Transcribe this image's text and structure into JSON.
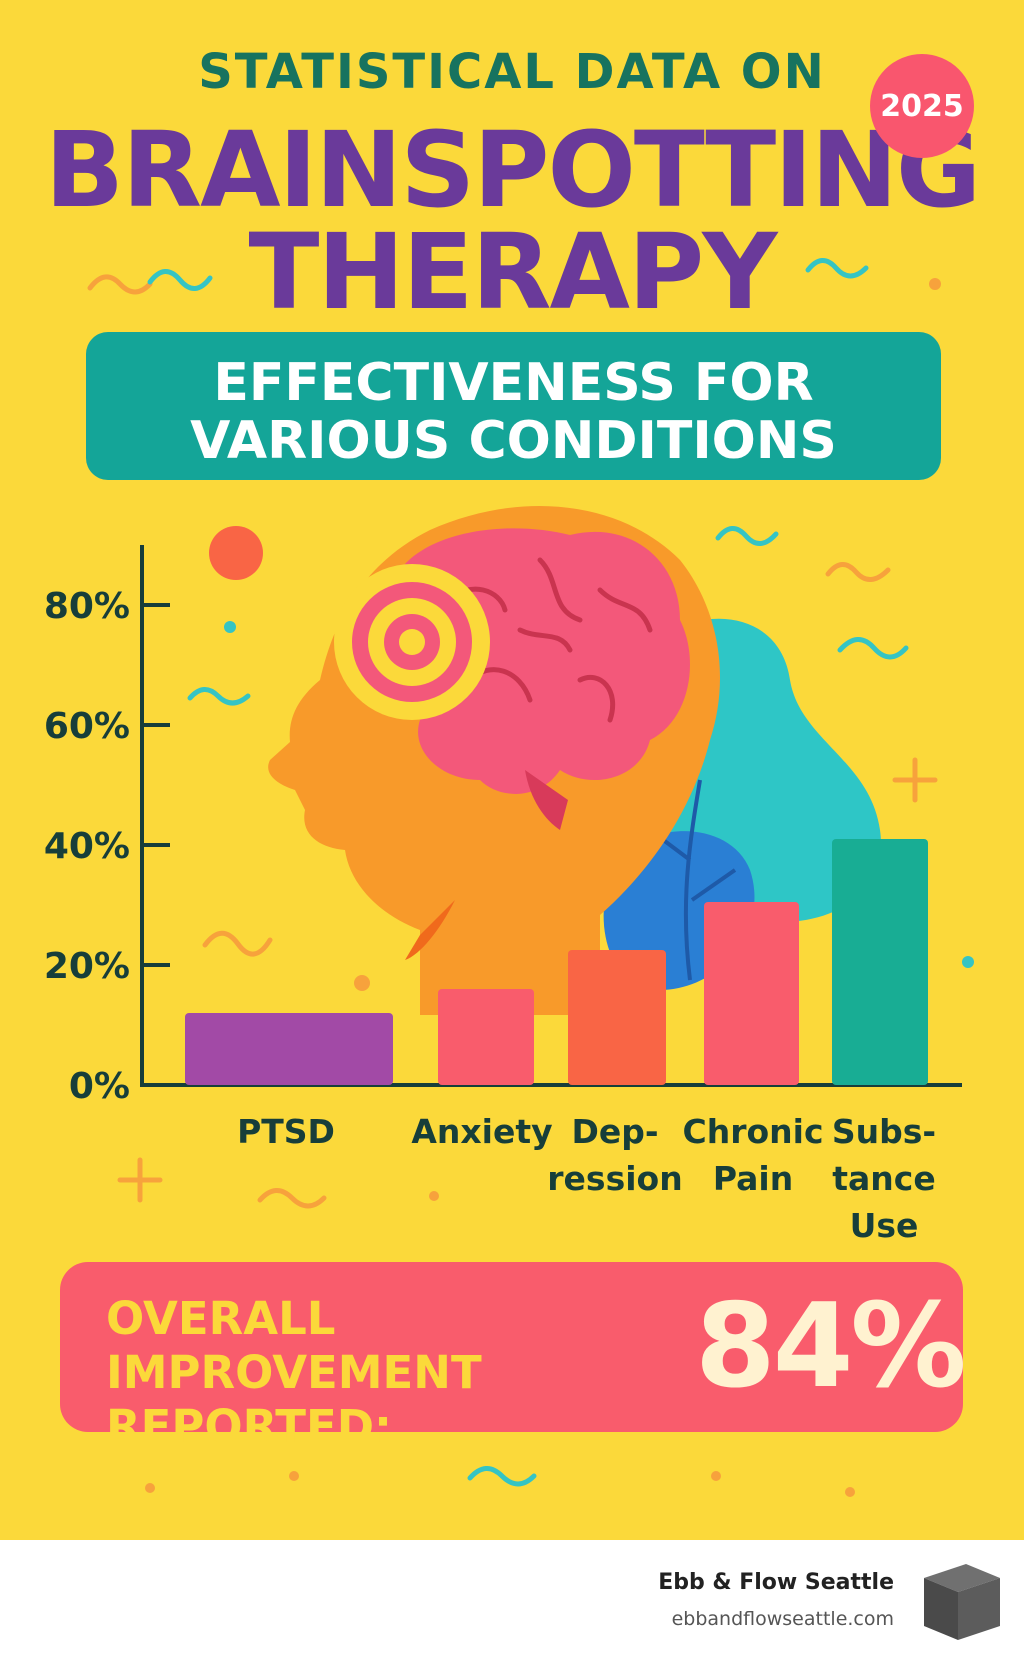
{
  "header": {
    "kicker": "STATISTICAL DATA ON",
    "title_line1": "BRAINSPOTTING",
    "title_line2": "THERAPY",
    "year_badge": "2025"
  },
  "subtitle": {
    "line1": "EFFECTIVENESS FOR",
    "line2": "VARIOUS CONDITIONS"
  },
  "chart_data": {
    "type": "bar",
    "categories": [
      "PTSD",
      "Anxiety",
      "Depression",
      "Chronic Pain",
      "Substance Use"
    ],
    "category_label_lines": [
      [
        "PTSD"
      ],
      [
        "Anxiety"
      ],
      [
        "Dep-",
        "ression"
      ],
      [
        "Chronic",
        "Pain"
      ],
      [
        "Subs-",
        "tance",
        "Use"
      ]
    ],
    "values": [
      12,
      16,
      22.5,
      30.5,
      41
    ],
    "ylim": [
      0,
      90
    ],
    "yticks": [
      0,
      20,
      40,
      60,
      80
    ],
    "ytick_labels": [
      "0%",
      "20%",
      "40%",
      "60%",
      "80%"
    ],
    "bar_colors": [
      "#a24aa6",
      "#f95c6c",
      "#f96545",
      "#f95c6c",
      "#18ad94"
    ],
    "title": "",
    "xlabel": "",
    "ylabel": "",
    "grid": false,
    "legend": "none"
  },
  "summary": {
    "label_line1": "OVERALL IMPROVEMENT",
    "label_line2": "REPORTED:",
    "value": "84%"
  },
  "footer": {
    "brand_name": "Ebb & Flow Seattle",
    "brand_url": "ebbandflowseattle.com",
    "logo_icon": "cube-icon"
  },
  "colors": {
    "background": "#fbd93a",
    "title_purple": "#6a3a9a",
    "kicker_green": "#17735f",
    "banner_teal": "#14a598",
    "summary_coral": "#f95c6c",
    "axis": "#173e3a"
  }
}
